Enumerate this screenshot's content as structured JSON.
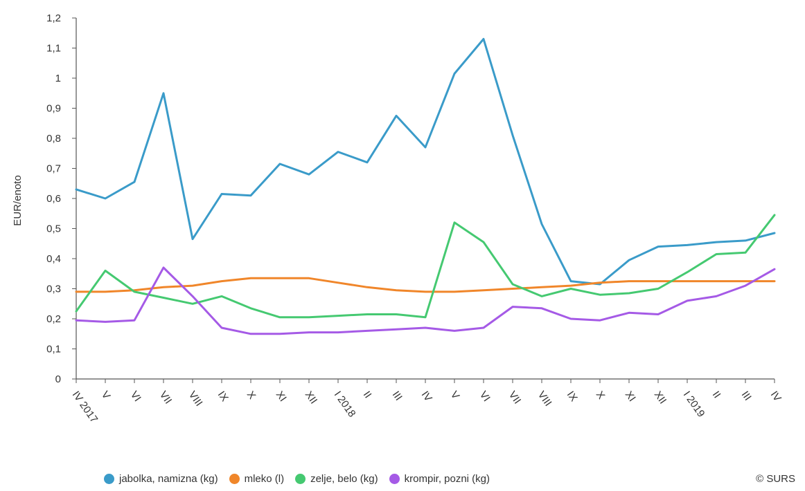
{
  "chart_data": {
    "type": "line",
    "ylabel": "EUR/enoto",
    "ylim": [
      0,
      1.2
    ],
    "yticks": [
      "0",
      "0,1",
      "0,2",
      "0,3",
      "0,4",
      "0,5",
      "0,6",
      "0,7",
      "0,8",
      "0,9",
      "1",
      "1,1",
      "1,2"
    ],
    "categories": [
      "IV 2017",
      "V",
      "VI",
      "VII",
      "VIII",
      "IX",
      "X",
      "XI",
      "XII",
      "I 2018",
      "II",
      "III",
      "IV",
      "V",
      "VI",
      "VII",
      "VIII",
      "IX",
      "X",
      "XI",
      "XII",
      "I 2019",
      "II",
      "III",
      "IV"
    ],
    "grid": false,
    "legend_position": "bottom",
    "series": [
      {
        "name": "jabolka, namizna (kg)",
        "color": "#3a9bc9",
        "values": [
          0.63,
          0.6,
          0.655,
          0.95,
          0.465,
          0.615,
          0.61,
          0.715,
          0.68,
          0.755,
          0.72,
          0.875,
          0.77,
          1.015,
          1.13,
          0.81,
          0.515,
          0.325,
          0.315,
          0.395,
          0.44,
          0.445,
          0.455,
          0.46,
          0.485
        ]
      },
      {
        "name": "mleko (l)",
        "color": "#f0862a",
        "values": [
          0.29,
          0.29,
          0.295,
          0.305,
          0.31,
          0.325,
          0.335,
          0.335,
          0.335,
          0.32,
          0.305,
          0.295,
          0.29,
          0.29,
          0.295,
          0.3,
          0.305,
          0.31,
          0.32,
          0.325,
          0.325,
          0.325,
          0.325,
          0.325,
          0.325
        ]
      },
      {
        "name": "zelje, belo (kg)",
        "color": "#45c971",
        "values": [
          0.225,
          0.36,
          0.29,
          0.27,
          0.25,
          0.275,
          0.235,
          0.205,
          0.205,
          0.21,
          0.215,
          0.215,
          0.205,
          0.52,
          0.455,
          0.315,
          0.275,
          0.3,
          0.28,
          0.285,
          0.3,
          0.355,
          0.415,
          0.42,
          0.545
        ]
      },
      {
        "name": "krompir, pozni (kg)",
        "color": "#a55ae6",
        "values": [
          0.195,
          0.19,
          0.195,
          0.37,
          0.275,
          0.17,
          0.15,
          0.15,
          0.155,
          0.155,
          0.16,
          0.165,
          0.17,
          0.16,
          0.17,
          0.24,
          0.235,
          0.2,
          0.195,
          0.22,
          0.215,
          0.26,
          0.275,
          0.31,
          0.365
        ]
      }
    ]
  },
  "credit": "© SURS"
}
